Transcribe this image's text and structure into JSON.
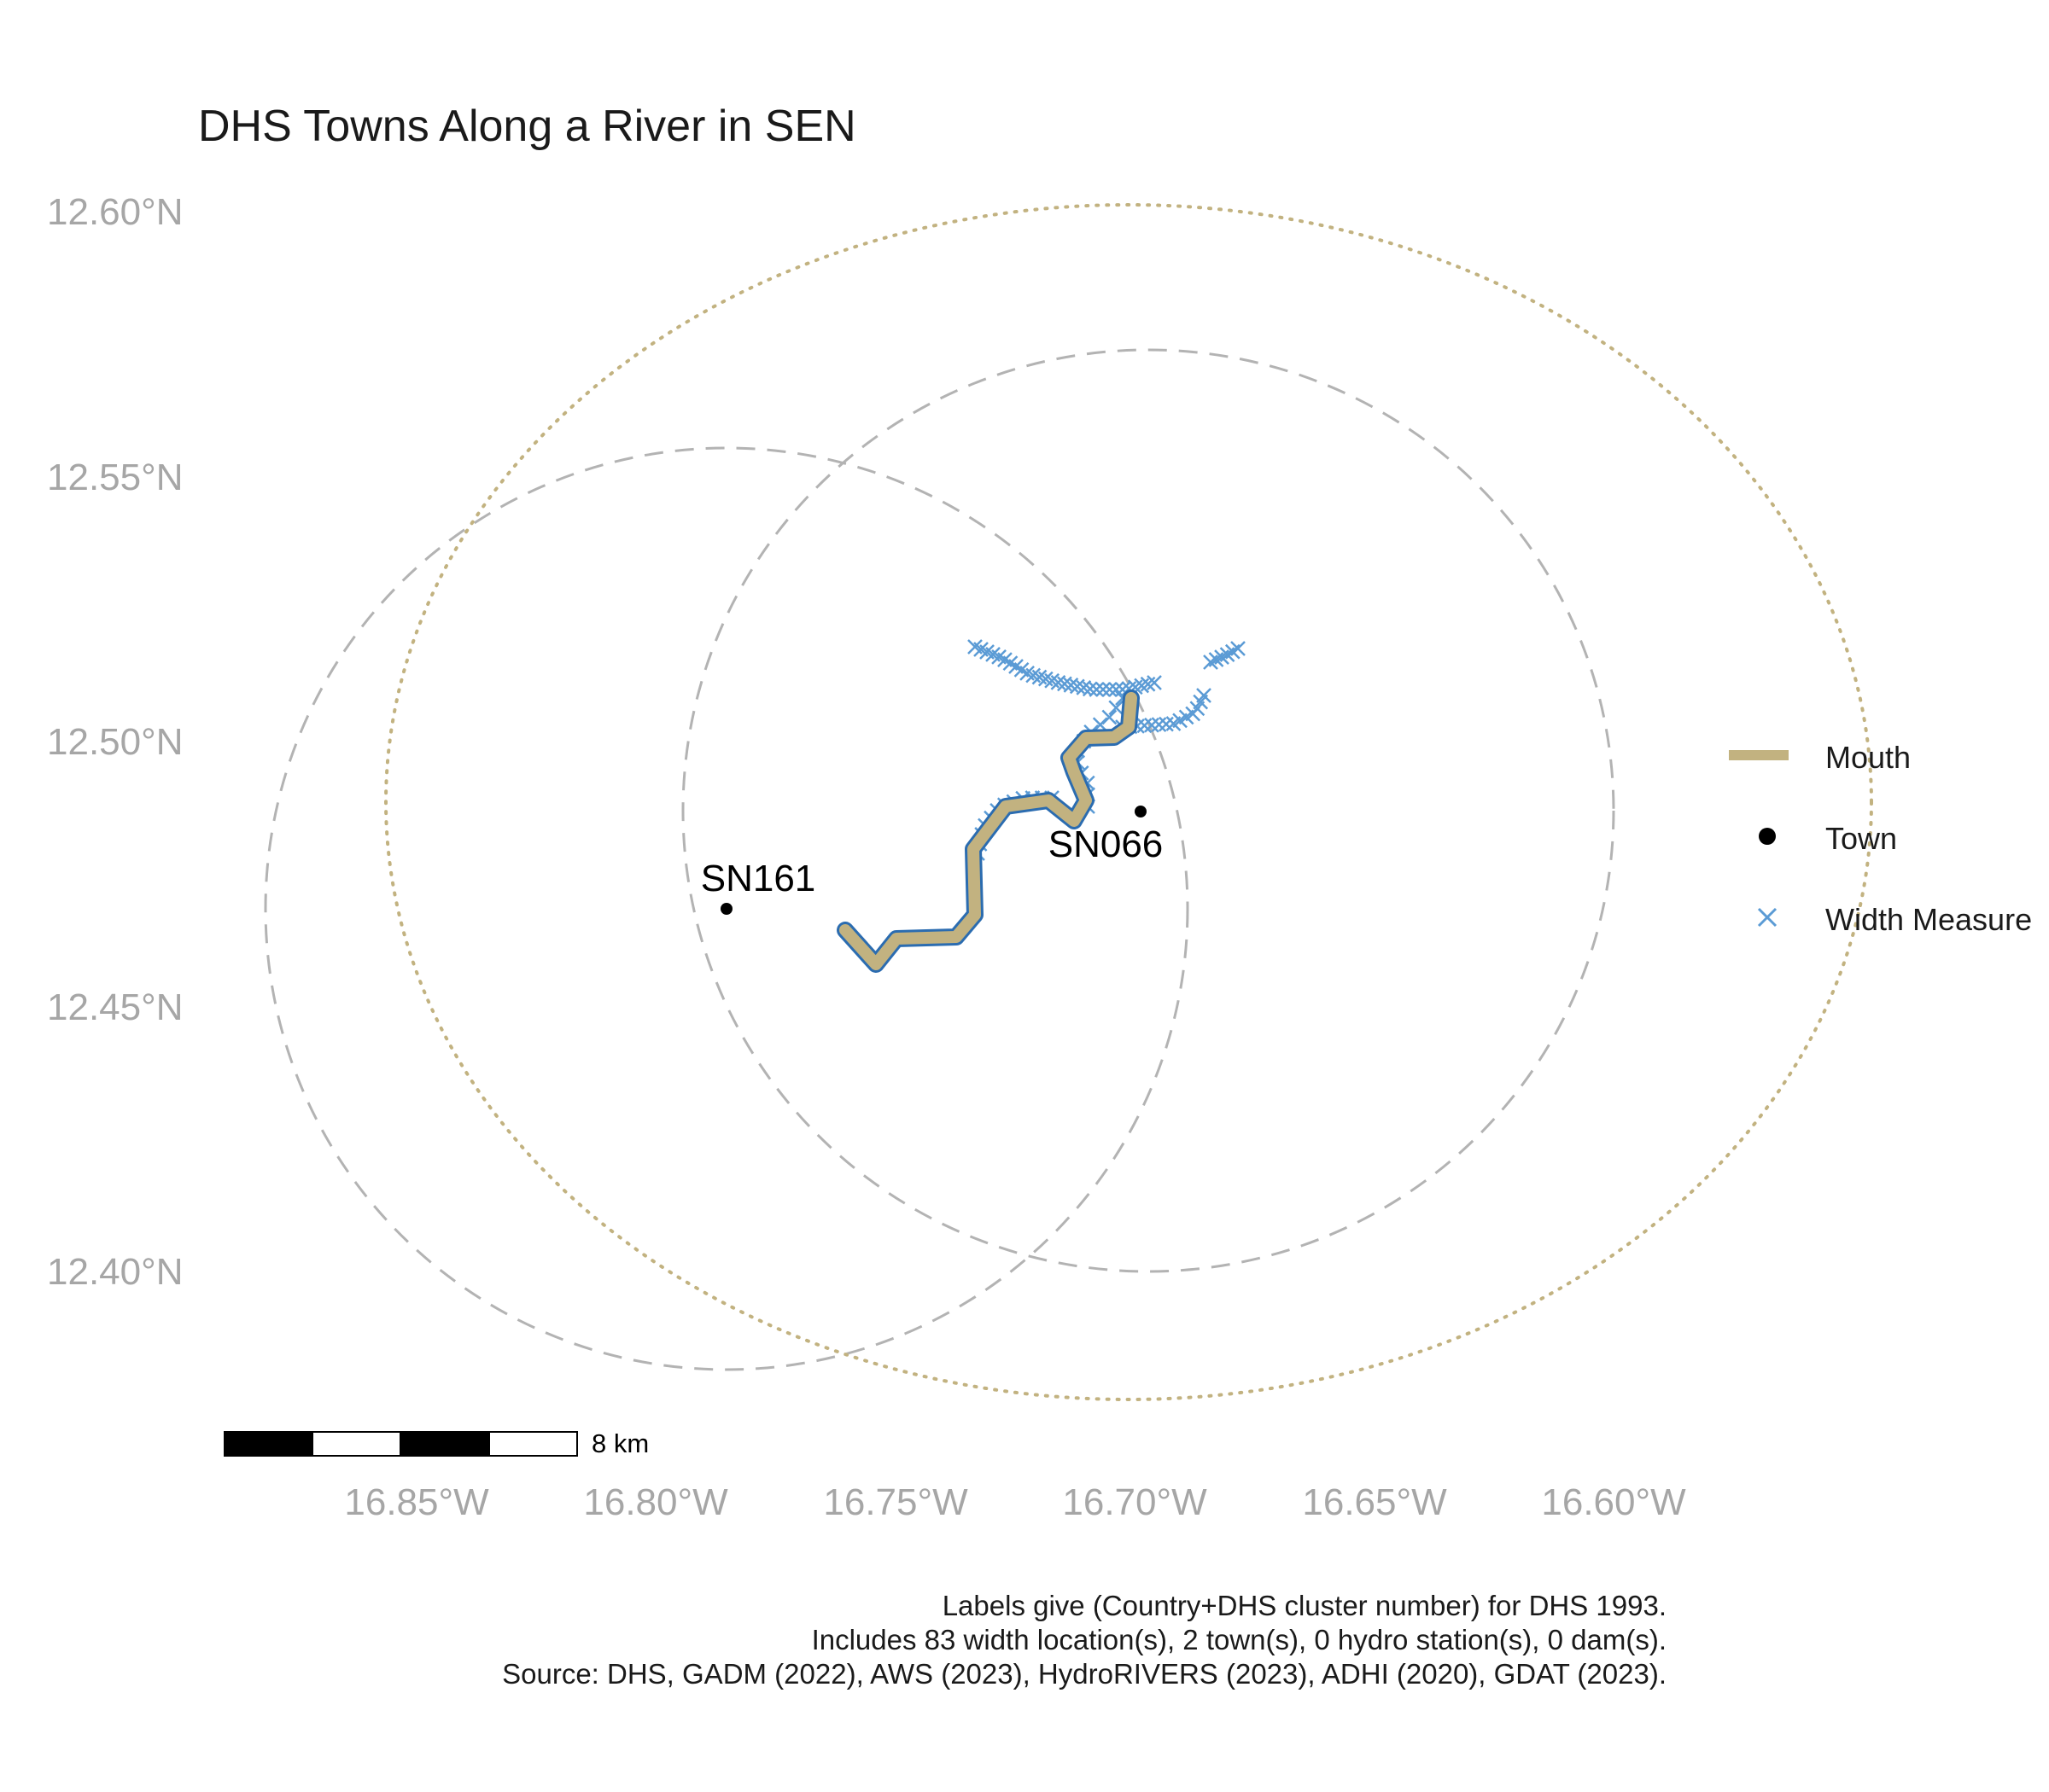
{
  "title": "DHS Towns Along a River in SEN",
  "axes": {
    "lat_ticks": [
      "12.60°N",
      "12.55°N",
      "12.50°N",
      "12.45°N",
      "12.40°N"
    ],
    "lon_ticks": [
      "16.85°W",
      "16.80°W",
      "16.75°W",
      "16.70°W",
      "16.65°W",
      "16.60°W"
    ]
  },
  "towns": [
    {
      "label": "SN161",
      "lon": -16.787,
      "lat": 12.468
    },
    {
      "label": "SN066",
      "lon": -16.7,
      "lat": 12.487
    }
  ],
  "legend": {
    "mouth_label": "Mouth",
    "town_label": "Town",
    "width_label": "Width Measure"
  },
  "scale_bar": {
    "label": "8 km"
  },
  "caption": {
    "line1": "Labels give (Country+DHS cluster number) for DHS 1993.",
    "line2": "Includes 83 width location(s), 2 town(s), 0 hydro station(s), 0 dam(s).",
    "line3": "Source: DHS, GADM (2022), AWS (2023), HydroRIVERS (2023), ADHI (2020), GDAT (2023)."
  },
  "colors": {
    "river": "#c2b280",
    "river_outline": "#2b6cb0",
    "width_marker": "#5b9bd5",
    "buffer_dashed": "#b3b3b3",
    "buffer_dotted": "#c2b280",
    "axis_text": "#a6a6a6"
  }
}
